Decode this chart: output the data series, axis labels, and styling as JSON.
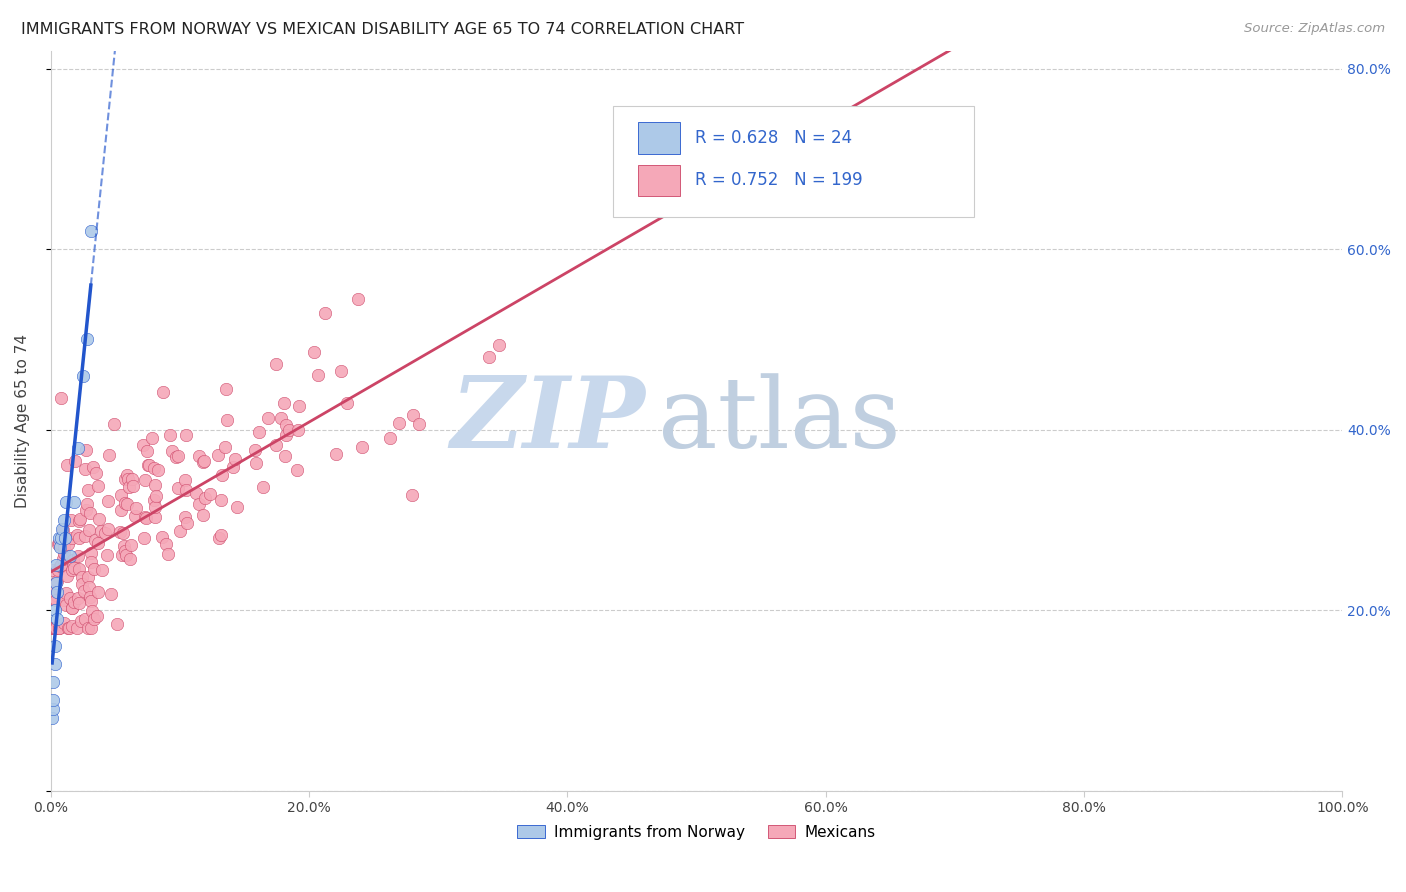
{
  "title": "IMMIGRANTS FROM NORWAY VS MEXICAN DISABILITY AGE 65 TO 74 CORRELATION CHART",
  "source": "Source: ZipAtlas.com",
  "ylabel": "Disability Age 65 to 74",
  "norway_R": 0.628,
  "norway_N": 24,
  "mexican_R": 0.752,
  "mexican_N": 199,
  "norway_color": "#adc9e8",
  "mexico_color": "#f5a8b8",
  "norway_line_color": "#2255cc",
  "mexico_line_color": "#cc4466",
  "watermark_zip_color": "#c8d8ec",
  "watermark_atlas_color": "#c0cfe0",
  "bg_color": "#ffffff",
  "grid_color": "#cccccc",
  "title_color": "#222222",
  "source_color": "#999999",
  "ylabel_color": "#444444",
  "tick_color": "#444444",
  "right_tick_color": "#3366cc",
  "legend_border_color": "#cccccc",
  "legend_text_color": "#3366cc",
  "xlim": [
    0.0,
    1.0
  ],
  "ylim": [
    0.0,
    0.82
  ],
  "xticks": [
    0.0,
    0.2,
    0.4,
    0.6,
    0.8,
    1.0
  ],
  "xticklabels": [
    "0.0%",
    "20.0%",
    "40.0%",
    "60.0%",
    "80.0%",
    "100.0%"
  ],
  "yticks_right": [
    0.0,
    0.2,
    0.4,
    0.6,
    0.8
  ],
  "yticklabels_right": [
    "",
    "20.0%",
    "40.0%",
    "60.0%",
    "80.0%"
  ]
}
